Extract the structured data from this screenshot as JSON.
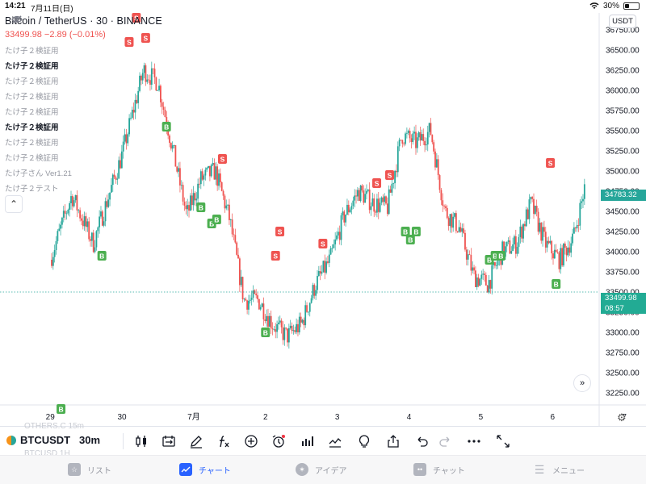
{
  "status_bar": {
    "time": "14:21",
    "date": "7月11日(日)",
    "battery": "30%",
    "battery_level": 0.3
  },
  "chart": {
    "symbol_line": "Bitcoin / TetherUS · 30 · BINANCE",
    "price_line": "33499.98  −2.89 (−0.01%)",
    "currency": "USDT",
    "indicators": [
      {
        "name": "たけ子２検証用",
        "bold": false,
        "eye": true
      },
      {
        "name": "たけ子２検証用",
        "bold": true,
        "eye": false
      },
      {
        "name": "たけ子２検証用",
        "bold": false,
        "eye": true
      },
      {
        "name": "たけ子２検証用",
        "bold": false,
        "eye": true
      },
      {
        "name": "たけ子２検証用",
        "bold": false,
        "eye": true
      },
      {
        "name": "たけ子２検証用",
        "bold": true,
        "eye": false
      },
      {
        "name": "たけ子２検証用",
        "bold": false,
        "eye": true
      },
      {
        "name": "たけ子２検証用",
        "bold": false,
        "eye": true
      },
      {
        "name": "たけ子さん Ver1.21",
        "bold": false,
        "eye": true
      },
      {
        "name": "たけ子２テスト",
        "bold": false,
        "eye": true
      }
    ],
    "collapse_icon": "chevron-up-icon",
    "scroll_icon": "double-chevron-right-icon",
    "settings_icon": "gear-icon",
    "tags": {
      "last": "34783.32",
      "current_price": "33499.98",
      "countdown": "08:57"
    },
    "markers": {
      "sell": "S",
      "buy": "B"
    },
    "colors": {
      "up": "#26a69a",
      "down": "#ef5350",
      "sell": "#ef5350",
      "buy": "#4caf50"
    }
  },
  "chart_data": {
    "type": "candlestick",
    "title": "Bitcoin / TetherUS · 30 · BINANCE",
    "x_ticks": [
      "29",
      "30",
      "7月",
      "2",
      "3",
      "4",
      "5",
      "6",
      "7"
    ],
    "y_ticks": [
      36750,
      36500,
      36250,
      36000,
      35750,
      35500,
      35250,
      35000,
      34750,
      34500,
      34250,
      34000,
      33750,
      33500,
      33250,
      33000,
      32750,
      32500,
      32250
    ],
    "ylim": [
      32100,
      36960
    ],
    "current_price": 33499.98,
    "last_price_tag": 34783.32,
    "path_points": [
      {
        "x": 0.0,
        "y": 33900
      },
      {
        "x": 0.3,
        "y": 34700
      },
      {
        "x": 0.6,
        "y": 34100
      },
      {
        "x": 1.0,
        "y": 35200
      },
      {
        "x": 1.3,
        "y": 36250
      },
      {
        "x": 1.5,
        "y": 36100
      },
      {
        "x": 1.7,
        "y": 35300
      },
      {
        "x": 1.9,
        "y": 34450
      },
      {
        "x": 2.1,
        "y": 34900
      },
      {
        "x": 2.3,
        "y": 35000
      },
      {
        "x": 2.5,
        "y": 34400
      },
      {
        "x": 2.7,
        "y": 33400
      },
      {
        "x": 2.9,
        "y": 33400
      },
      {
        "x": 3.1,
        "y": 33100
      },
      {
        "x": 3.3,
        "y": 32950
      },
      {
        "x": 3.5,
        "y": 33100
      },
      {
        "x": 3.7,
        "y": 33600
      },
      {
        "x": 3.9,
        "y": 33900
      },
      {
        "x": 4.1,
        "y": 34450
      },
      {
        "x": 4.3,
        "y": 34750
      },
      {
        "x": 4.5,
        "y": 34600
      },
      {
        "x": 4.7,
        "y": 34550
      },
      {
        "x": 4.9,
        "y": 35450
      },
      {
        "x": 5.1,
        "y": 35350
      },
      {
        "x": 5.3,
        "y": 35500
      },
      {
        "x": 5.5,
        "y": 34500
      },
      {
        "x": 5.7,
        "y": 34300
      },
      {
        "x": 5.9,
        "y": 33700
      },
      {
        "x": 6.1,
        "y": 33600
      },
      {
        "x": 6.3,
        "y": 34000
      },
      {
        "x": 6.5,
        "y": 34100
      },
      {
        "x": 6.7,
        "y": 34600
      },
      {
        "x": 6.9,
        "y": 34100
      },
      {
        "x": 7.1,
        "y": 33900
      },
      {
        "x": 7.3,
        "y": 34200
      },
      {
        "x": 7.45,
        "y": 34800
      }
    ],
    "sell_signals": [
      {
        "x": 1.1,
        "y": 36600
      },
      {
        "x": 1.2,
        "y": 36900
      },
      {
        "x": 1.33,
        "y": 36650
      },
      {
        "x": 2.4,
        "y": 35150
      },
      {
        "x": 3.14,
        "y": 33950
      },
      {
        "x": 3.2,
        "y": 34250
      },
      {
        "x": 3.8,
        "y": 34100
      },
      {
        "x": 4.55,
        "y": 34850
      },
      {
        "x": 4.73,
        "y": 34950
      },
      {
        "x": 6.97,
        "y": 35100
      }
    ],
    "buy_signals": [
      {
        "x": 0.15,
        "y": 32050
      },
      {
        "x": 0.72,
        "y": 33950
      },
      {
        "x": 1.62,
        "y": 35550
      },
      {
        "x": 2.1,
        "y": 34550
      },
      {
        "x": 2.25,
        "y": 34350
      },
      {
        "x": 2.32,
        "y": 34400
      },
      {
        "x": 3.0,
        "y": 33000
      },
      {
        "x": 4.95,
        "y": 34250
      },
      {
        "x": 5.02,
        "y": 34150
      },
      {
        "x": 5.1,
        "y": 34250
      },
      {
        "x": 6.12,
        "y": 33900
      },
      {
        "x": 6.2,
        "y": 33950
      },
      {
        "x": 6.28,
        "y": 33950
      },
      {
        "x": 7.05,
        "y": 33600
      }
    ]
  },
  "toolbar": {
    "ghost_top": "OTHERS.C  15m",
    "ghost_bottom": "BTCUSD  1H",
    "symbol": "BTCUSDT",
    "interval": "30m",
    "icons": [
      "candles-icon",
      "compare-icon",
      "pen-icon",
      "fx-icon",
      "plus-circle-icon",
      "alarm-icon",
      "bar-chart-icon",
      "line-chart-icon",
      "bulb-icon",
      "share-icon",
      "undo-icon",
      "redo-icon",
      "more-icon",
      "fullscreen-icon"
    ]
  },
  "tabs": [
    {
      "label": "リスト",
      "icon": "star-icon",
      "active": false
    },
    {
      "label": "チャート",
      "icon": "chart-icon",
      "active": true
    },
    {
      "label": "アイデア",
      "icon": "bulb-icon",
      "active": false
    },
    {
      "label": "チャット",
      "icon": "chat-icon",
      "active": false
    },
    {
      "label": "メニュー",
      "icon": "menu-icon",
      "active": false
    }
  ]
}
